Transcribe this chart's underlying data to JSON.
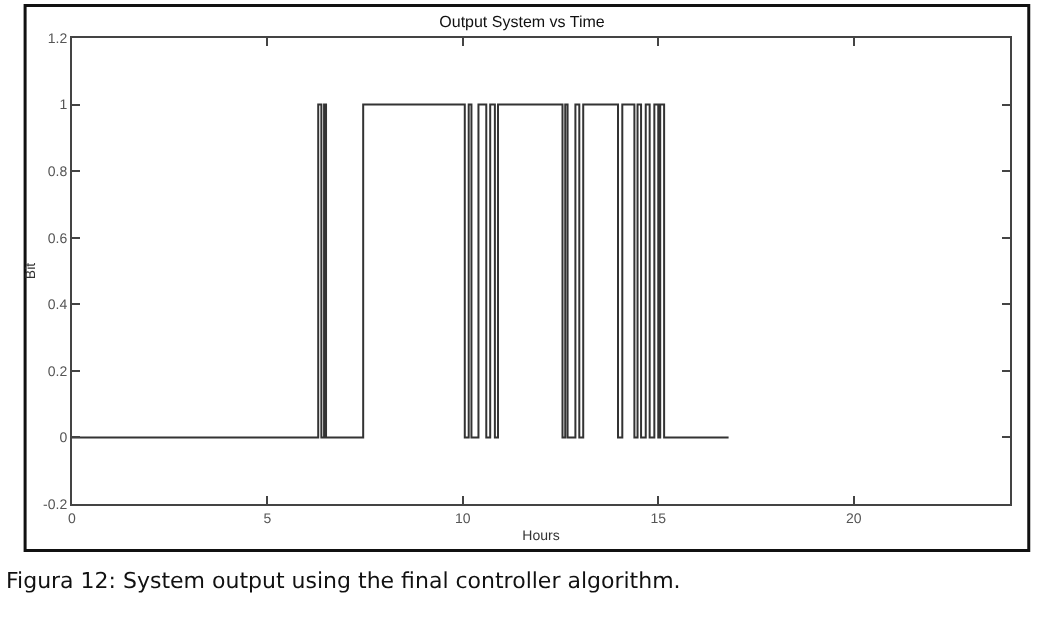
{
  "chart_data": {
    "type": "step",
    "title": "Output System vs Time",
    "xlabel": "Hours",
    "ylabel": "Bit",
    "x": [
      0,
      6.3,
      6.38,
      6.45,
      6.5,
      7.45,
      10.05,
      10.15,
      10.22,
      10.4,
      10.6,
      10.7,
      10.82,
      10.9,
      12.55,
      12.62,
      12.68,
      12.88,
      12.98,
      13.08,
      13.97,
      14.08,
      14.39,
      14.47,
      14.56,
      14.68,
      14.78,
      14.9,
      15.0,
      15.05,
      15.15,
      16.8
    ],
    "series": [
      {
        "color": "#333333",
        "values": [
          0,
          1,
          0,
          1,
          0,
          1,
          0,
          1,
          0,
          1,
          0,
          1,
          0,
          1,
          0,
          1,
          0,
          1,
          0,
          1,
          0,
          1,
          0,
          1,
          0,
          1,
          0,
          1,
          0,
          1,
          0,
          0
        ]
      }
    ],
    "xlim": [
      0,
      24
    ],
    "xticks": [
      0,
      5,
      10,
      15,
      20
    ],
    "ylim": [
      -0.2,
      1.2
    ],
    "yticks": [
      {
        "value": -0.2,
        "label": "-0.2"
      },
      0,
      0.2,
      0.4,
      0.6,
      0.8,
      1,
      1.2
    ],
    "legend": false,
    "marker": "none",
    "line_style": "solid",
    "annotations": [
      "Figura 12: System output using the final controller algorithm."
    ]
  }
}
